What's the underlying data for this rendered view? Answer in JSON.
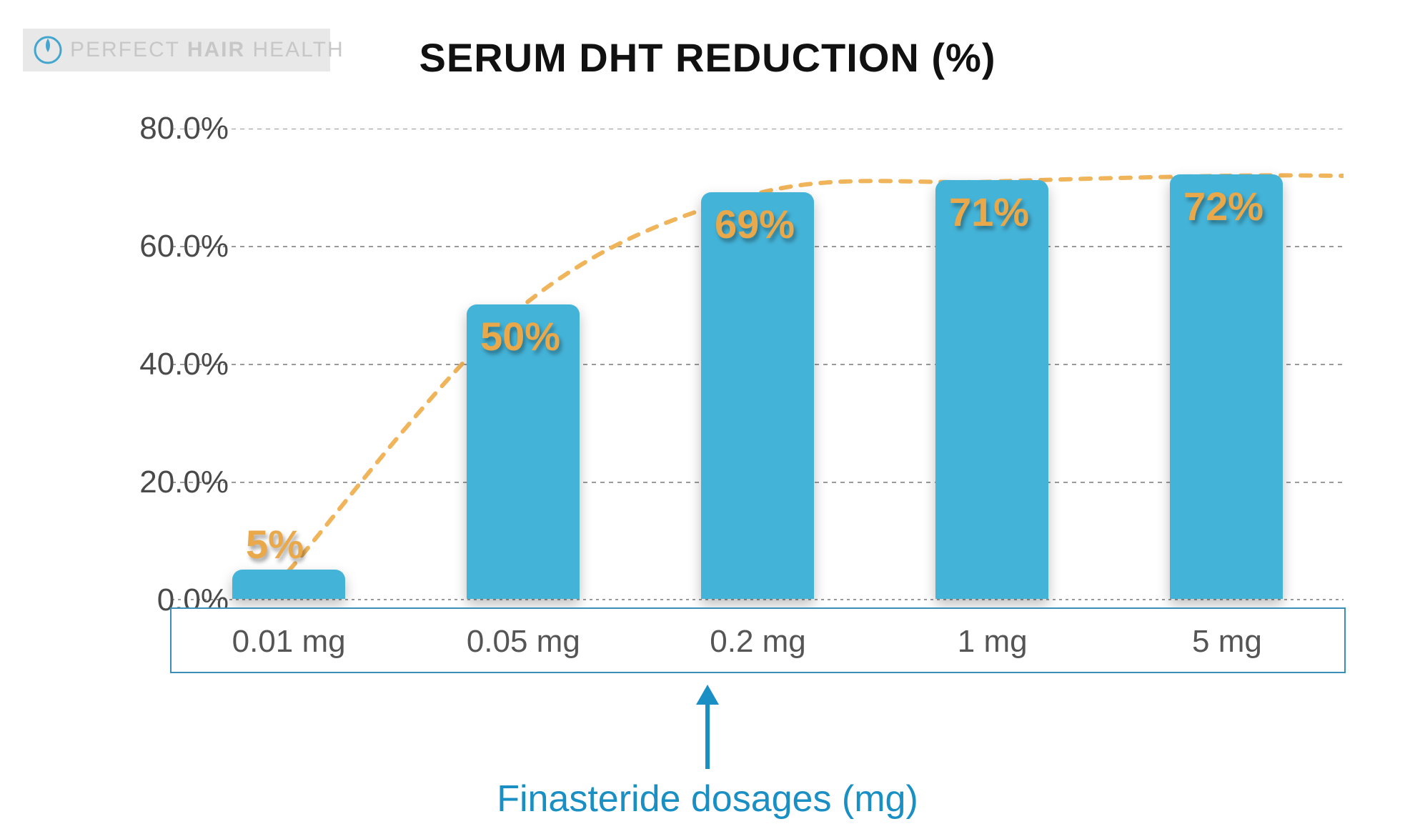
{
  "logo": {
    "segments": [
      {
        "text": "PERFECT ",
        "bold": false
      },
      {
        "text": "HAIR",
        "bold": true
      },
      {
        "text": " HEALTH",
        "bold": false
      }
    ],
    "bg_color": "#e8e8e8",
    "text_color": "#c7c7c7",
    "icon_color": "#43a6cf"
  },
  "chart": {
    "type": "bar",
    "title": "SERUM DHT REDUCTION  (%)",
    "title_color": "#111111",
    "title_fontsize": 56,
    "background_color": "#ffffff",
    "grid_color": "#9a9a9a",
    "grid_dash": "6 6",
    "ylim": [
      0,
      80
    ],
    "ytick_step": 20,
    "yticks": [
      "0.0%",
      "20.0%",
      "40.0%",
      "60.0%",
      "80.0%"
    ],
    "ytick_color": "#4a4a4a",
    "ytick_fontsize": 44,
    "categories": [
      "0.01 mg",
      "0.05 mg",
      "0.2 mg",
      "1 mg",
      "5 mg"
    ],
    "category_fontsize": 44,
    "category_color": "#555555",
    "category_box_border": "#3c8fb8",
    "values": [
      5,
      50,
      69,
      71,
      72
    ],
    "value_labels": [
      "5%",
      "50%",
      "69%",
      "71%",
      "72%"
    ],
    "value_label_color": "#e9a94a",
    "value_label_shadow": "rgba(0,0,0,0.35)",
    "value_label_fontsize": 56,
    "bar_color": "#44b3d8",
    "bar_width_ratio": 0.48,
    "bar_border_radius": 14,
    "bar_shadow": "0 8px 18px rgba(0,0,0,0.25)",
    "trendline_color": "#f0b45a",
    "trendline_width": 6,
    "trendline_dash": "14 14",
    "xlabel": "Finasteride dosages (mg)",
    "xlabel_color": "#1a8fc4",
    "xlabel_fontsize": 52,
    "arrow_color": "#1a8fc4"
  }
}
